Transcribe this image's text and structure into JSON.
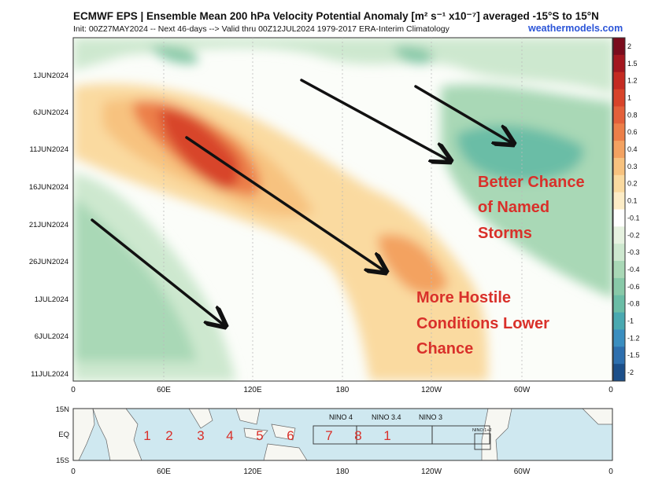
{
  "header": {
    "title": "ECMWF EPS | Ensemble Mean 200 hPa Velocity Potential Anomaly [m² s⁻¹ x10⁻⁷] averaged -15°S to 15°N",
    "subtitle": "Init: 00Z27MAY2024 -- Next 46-days --> Valid thru 00Z12JUL2024 1979-2017 ERA-Interim Climatology",
    "brand": "weathermodels.com"
  },
  "chart_data": [
    {
      "type": "heatmap",
      "y_tick_labels": [
        "1JUN2024",
        "6JUN2024",
        "11JUN2024",
        "16JUN2024",
        "21JUN2024",
        "26JUN2024",
        "1JUL2024",
        "6JUL2024",
        "11JUL2024"
      ],
      "x_tick_labels": [
        "0",
        "60E",
        "120E",
        "180",
        "120W",
        "60W",
        "0"
      ],
      "x_range": [
        "0",
        "0"
      ],
      "colorbar": {
        "levels": [
          "2",
          "1.5",
          "1.2",
          "1",
          "0.8",
          "0.6",
          "0.4",
          "0.3",
          "0.2",
          "0.1",
          "-0.1",
          "-0.2",
          "-0.3",
          "-0.4",
          "-0.6",
          "-0.8",
          "-1",
          "-1.2",
          "-1.5",
          "-2"
        ],
        "colors": [
          "#7a0c1d",
          "#a3171f",
          "#c42b22",
          "#d8442a",
          "#e3603a",
          "#ec7f49",
          "#f3a261",
          "#f7c27f",
          "#fadaa0",
          "#fcecc6",
          "#ffffff",
          "#e6f2e0",
          "#cde8cf",
          "#a9d8b6",
          "#88c9a8",
          "#6bbda6",
          "#4aa9b1",
          "#3b8ec0",
          "#2e6fae",
          "#1c4f8a"
        ]
      },
      "annotations": [
        {
          "text_lines": [
            "Better Chance",
            "of Named",
            "Storms"
          ],
          "color": "#d9302a"
        },
        {
          "text_lines": [
            "More Hostile",
            "Conditions Lower",
            "Chance"
          ],
          "color": "#d9302a"
        }
      ],
      "arrows": "5 black arrows pointing down-right (eastward propagation)"
    },
    {
      "type": "map",
      "lat_labels": [
        "15N",
        "EQ",
        "15S"
      ],
      "lon_labels": [
        "0",
        "60E",
        "120E",
        "180",
        "120W",
        "60W",
        "0"
      ],
      "regions": [
        "NINO 4",
        "NINO 3.4",
        "NINO 3",
        "NINO 1+2"
      ],
      "phase_numbers": [
        "1",
        "2",
        "3",
        "4",
        "5",
        "6",
        "7",
        "8",
        "1"
      ]
    }
  ]
}
